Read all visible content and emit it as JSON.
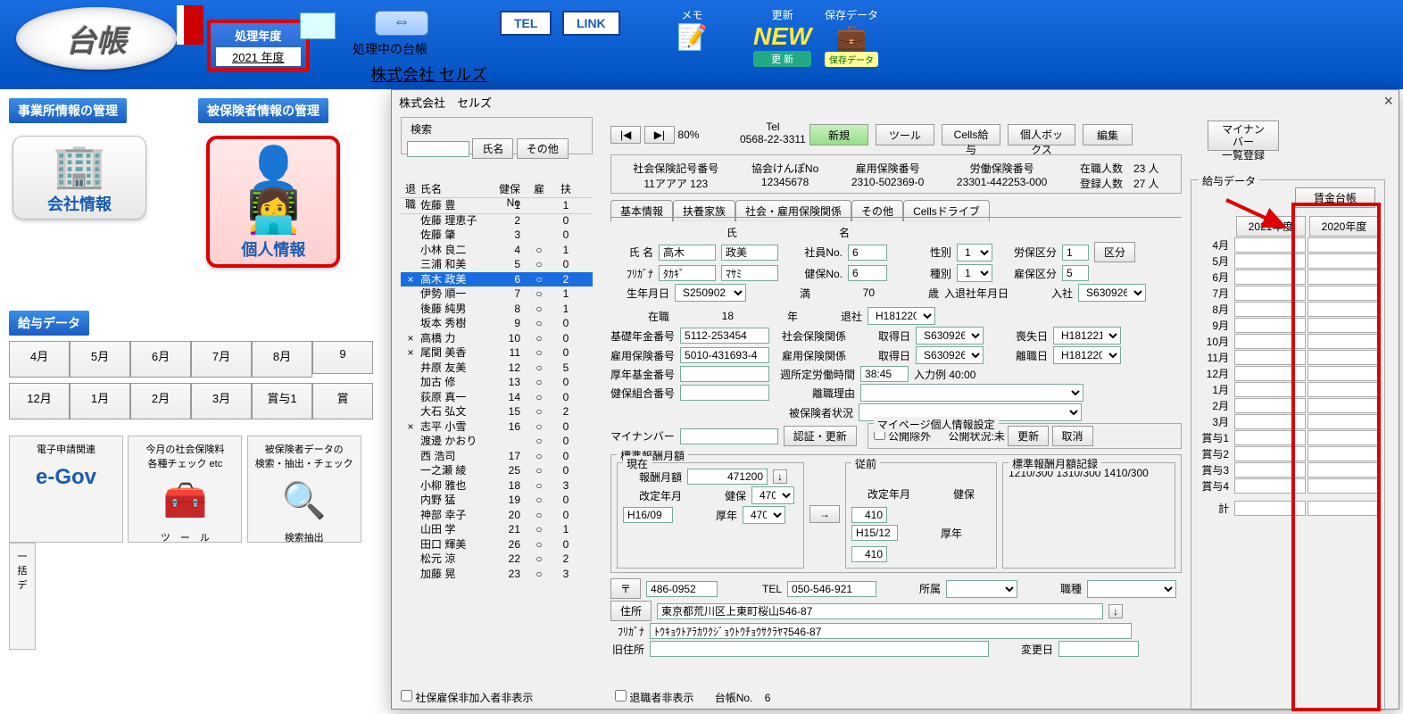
{
  "top": {
    "logo": "台帳",
    "year_label": "処理年度",
    "year_value": "2021 年度",
    "processing_label": "処理中の台帳",
    "processing_company": "株式会社  セルズ",
    "tel": "TEL",
    "link": "LINK",
    "memo": "メモ",
    "update": "更新",
    "saved": "保存データ"
  },
  "left": {
    "company_mgmt": "事業所情報の管理",
    "insured_mgmt": "被保険者情報の管理",
    "company_info": "会社情報",
    "personal_info": "個人情報",
    "salary_data": "給与データ",
    "months_top": [
      "4月",
      "5月",
      "6月",
      "7月",
      "8月",
      "9"
    ],
    "months_bottom": [
      "12月",
      "1月",
      "2月",
      "3月",
      "賞与1",
      "賞"
    ],
    "tools": {
      "egov": "電子申請関連",
      "check": "今月の社会保険料\n各種チェック etc",
      "check_label": "ツ　ー　ル",
      "extract": "被保険者データの\n検索・抽出・チェック",
      "extract_label": "検索抽出",
      "batch": "一括\nデ"
    }
  },
  "win": {
    "title": "株式会社　セルズ",
    "search_label": "検索",
    "name_btn": "氏名",
    "other_btn": "その他",
    "zoom": "80%",
    "tel_hdr": "Tel",
    "tel_val": "0568-22-3311",
    "btn_new": "新規",
    "btn_tool": "ツール",
    "btn_cells": "Cells給与",
    "btn_box": "個人ボックス",
    "btn_edit": "編集",
    "btn_mynumber": "マイナンバー\n一覧登録",
    "info": {
      "shaho_lbl": "社会保険記号番号",
      "shaho_val": "11アアア 123",
      "kyokai_lbl": "協会けんぽNo",
      "kyokai_val": "12345678",
      "koyo_lbl": "雇用保険番号",
      "koyo_val": "2310-502369-0",
      "rodo_lbl": "労働保険番号",
      "rodo_val": "23301-442253-000",
      "zaiseki_lbl": "在職人数",
      "zaiseki_val": "23 人",
      "toroku_lbl": "登録人数",
      "toroku_val": "27 人"
    },
    "list_hdr": {
      "ret": "退職",
      "name": "氏名",
      "no": "健保No",
      "emp": "雇",
      "dep": "扶"
    },
    "employees": [
      {
        "ret": "",
        "name": "佐藤 豊",
        "no": "1",
        "emp": "",
        "dep": "1"
      },
      {
        "ret": "",
        "name": "佐藤 理恵子",
        "no": "2",
        "emp": "",
        "dep": "0"
      },
      {
        "ret": "",
        "name": "佐藤 肇",
        "no": "3",
        "emp": "",
        "dep": "0"
      },
      {
        "ret": "",
        "name": "小林 良二",
        "no": "4",
        "emp": "○",
        "dep": "1"
      },
      {
        "ret": "",
        "name": "三浦 和美",
        "no": "5",
        "emp": "○",
        "dep": "0"
      },
      {
        "ret": "×",
        "name": "高木 政美",
        "no": "6",
        "emp": "○",
        "dep": "2",
        "sel": true
      },
      {
        "ret": "",
        "name": "伊勢 順一",
        "no": "7",
        "emp": "○",
        "dep": "1"
      },
      {
        "ret": "",
        "name": "後藤 純男",
        "no": "8",
        "emp": "○",
        "dep": "1"
      },
      {
        "ret": "",
        "name": "坂本 秀樹",
        "no": "9",
        "emp": "○",
        "dep": "0"
      },
      {
        "ret": "×",
        "name": "高橋 力",
        "no": "10",
        "emp": "○",
        "dep": "0"
      },
      {
        "ret": "×",
        "name": "尾関 美香",
        "no": "11",
        "emp": "○",
        "dep": "0"
      },
      {
        "ret": "",
        "name": "井原 友美",
        "no": "12",
        "emp": "○",
        "dep": "5"
      },
      {
        "ret": "",
        "name": "加古 修",
        "no": "13",
        "emp": "○",
        "dep": "0"
      },
      {
        "ret": "",
        "name": "荻原 真一",
        "no": "14",
        "emp": "○",
        "dep": "0"
      },
      {
        "ret": "",
        "name": "大石 弘文",
        "no": "15",
        "emp": "○",
        "dep": "2"
      },
      {
        "ret": "×",
        "name": "志平 小雪",
        "no": "16",
        "emp": "○",
        "dep": "0"
      },
      {
        "ret": "",
        "name": "渡邊 かおり",
        "no": "",
        "emp": "○",
        "dep": "0"
      },
      {
        "ret": "",
        "name": "西 浩司",
        "no": "17",
        "emp": "○",
        "dep": "0"
      },
      {
        "ret": "",
        "name": "一之瀬 綾",
        "no": "25",
        "emp": "○",
        "dep": "0"
      },
      {
        "ret": "",
        "name": "小柳 雅也",
        "no": "18",
        "emp": "○",
        "dep": "3"
      },
      {
        "ret": "",
        "name": "内野 猛",
        "no": "19",
        "emp": "○",
        "dep": "0"
      },
      {
        "ret": "",
        "name": "神部 幸子",
        "no": "20",
        "emp": "○",
        "dep": "0"
      },
      {
        "ret": "",
        "name": "山田 学",
        "no": "21",
        "emp": "○",
        "dep": "1"
      },
      {
        "ret": "",
        "name": "田口 輝美",
        "no": "26",
        "emp": "○",
        "dep": "0"
      },
      {
        "ret": "",
        "name": "松元 涼",
        "no": "22",
        "emp": "○",
        "dep": "2"
      },
      {
        "ret": "",
        "name": "加藤 晃",
        "no": "23",
        "emp": "○",
        "dep": "3"
      }
    ],
    "tabs": [
      "基本情報",
      "扶養家族",
      "社会・雇用保険関係",
      "その他",
      "Cellsドライブ"
    ],
    "form": {
      "shi_hdr": "氏",
      "mei_hdr": "名",
      "name_lbl": "氏 名",
      "name_shi": "高木",
      "name_mei": "政美",
      "kana_lbl": "ﾌﾘｶﾞﾅ",
      "kana_shi": "ﾀｶｷﾞ",
      "kana_mei": "ﾏｻﾐ",
      "emp_no_lbl": "社員No.",
      "emp_no": "6",
      "kenpo_no_lbl": "健保No.",
      "kenpo_no": "6",
      "sex_lbl": "性別",
      "sex": "1",
      "type_lbl": "種別",
      "type": "1",
      "rouho_lbl": "労保区分",
      "rouho": "1",
      "koyo_kbn_lbl": "雇保区分",
      "koyo_kbn": "5",
      "kubun_btn": "区分",
      "birth_lbl": "生年月日",
      "birth": "S250902",
      "age_lbl": "満",
      "age": "70",
      "age_unit": "歳",
      "inout_lbl": "入退社年月日",
      "in_lbl": "入社",
      "in": "S630926",
      "tenure_lbl": "在職",
      "tenure": "18",
      "tenure_unit": "年",
      "out_lbl": "退社",
      "out": "H181220",
      "kiso_lbl": "基礎年金番号",
      "kiso": "5112-253454",
      "shaho_lbl": "社会保険関係",
      "acq_lbl": "取得日",
      "shaho_acq": "S630926",
      "loss_lbl": "喪失日",
      "shaho_loss": "H181221",
      "koyo_no_lbl": "雇用保険番号",
      "koyo_no": "5010-431693-4",
      "koyo_rel_lbl": "雇用保険関係",
      "koyo_acq": "S630926",
      "leave_lbl": "離職日",
      "koyo_leave": "H181220",
      "konen_lbl": "厚年基金番号",
      "weekly_lbl": "週所定労働時間",
      "weekly": "38:45",
      "weekly_hint": "入力例 40:00",
      "kenpo_union_lbl": "健保組合番号",
      "leave_reason_lbl": "離職理由",
      "insured_status_lbl": "被保険者状況",
      "mynumber_lbl": "マイナンバー",
      "auth_btn": "認証・更新",
      "mypage_lbl": "マイページ個人情報設定",
      "exclude_lbl": "公開除外",
      "status_lbl": "公開状況:未",
      "update_btn": "更新",
      "cancel_btn": "取消",
      "monthly_grp": "標準報酬月額",
      "current_lbl": "現在",
      "former_lbl": "従前",
      "record_lbl": "標準報酬月額記録",
      "monthly_lbl": "報酬月額",
      "monthly": "471200",
      "rev_lbl": "改定年月",
      "kenpo_l": "健保",
      "konen_l": "厚年",
      "rev": "H16/09",
      "kenpo_v": "470",
      "konen_v": "470",
      "former_rev": "H15/12",
      "former_kenpo": "410",
      "former_konen": "410",
      "record": "1210/300 1310/300 1410/300",
      "postal_mark": "〒",
      "postal": "486-0952",
      "tel_l": "TEL",
      "tel_v": "050-546-921",
      "dept_lbl": "所属",
      "occ_lbl": "職種",
      "addr_lbl": "住所",
      "addr": "東京都荒川区上東町桜山546-87",
      "addr_kana_lbl": "ﾌﾘｶﾞﾅ",
      "addr_kana": "ﾄｳｷｮｳﾄｱﾗｶﾜｸｼﾞｮｳﾄｳﾁｮｳｻｸﾗﾔﾏ546-87",
      "old_addr_lbl": "旧住所",
      "change_date_lbl": "変更日"
    },
    "footer": {
      "hide_non": "社保雇保非加入者非表示",
      "hide_ret": "退職者非表示",
      "ledger_no_lbl": "台帳No.",
      "ledger_no": "6"
    },
    "salary": {
      "title": "給与データ",
      "wage_btn": "賃金台帳",
      "y1": "2021年度",
      "y2": "2020年度",
      "rows": [
        "4月",
        "5月",
        "6月",
        "7月",
        "8月",
        "9月",
        "10月",
        "11月",
        "12月",
        "1月",
        "2月",
        "3月",
        "賞与1",
        "賞与2",
        "賞与3",
        "賞与4"
      ],
      "total": "計"
    }
  }
}
